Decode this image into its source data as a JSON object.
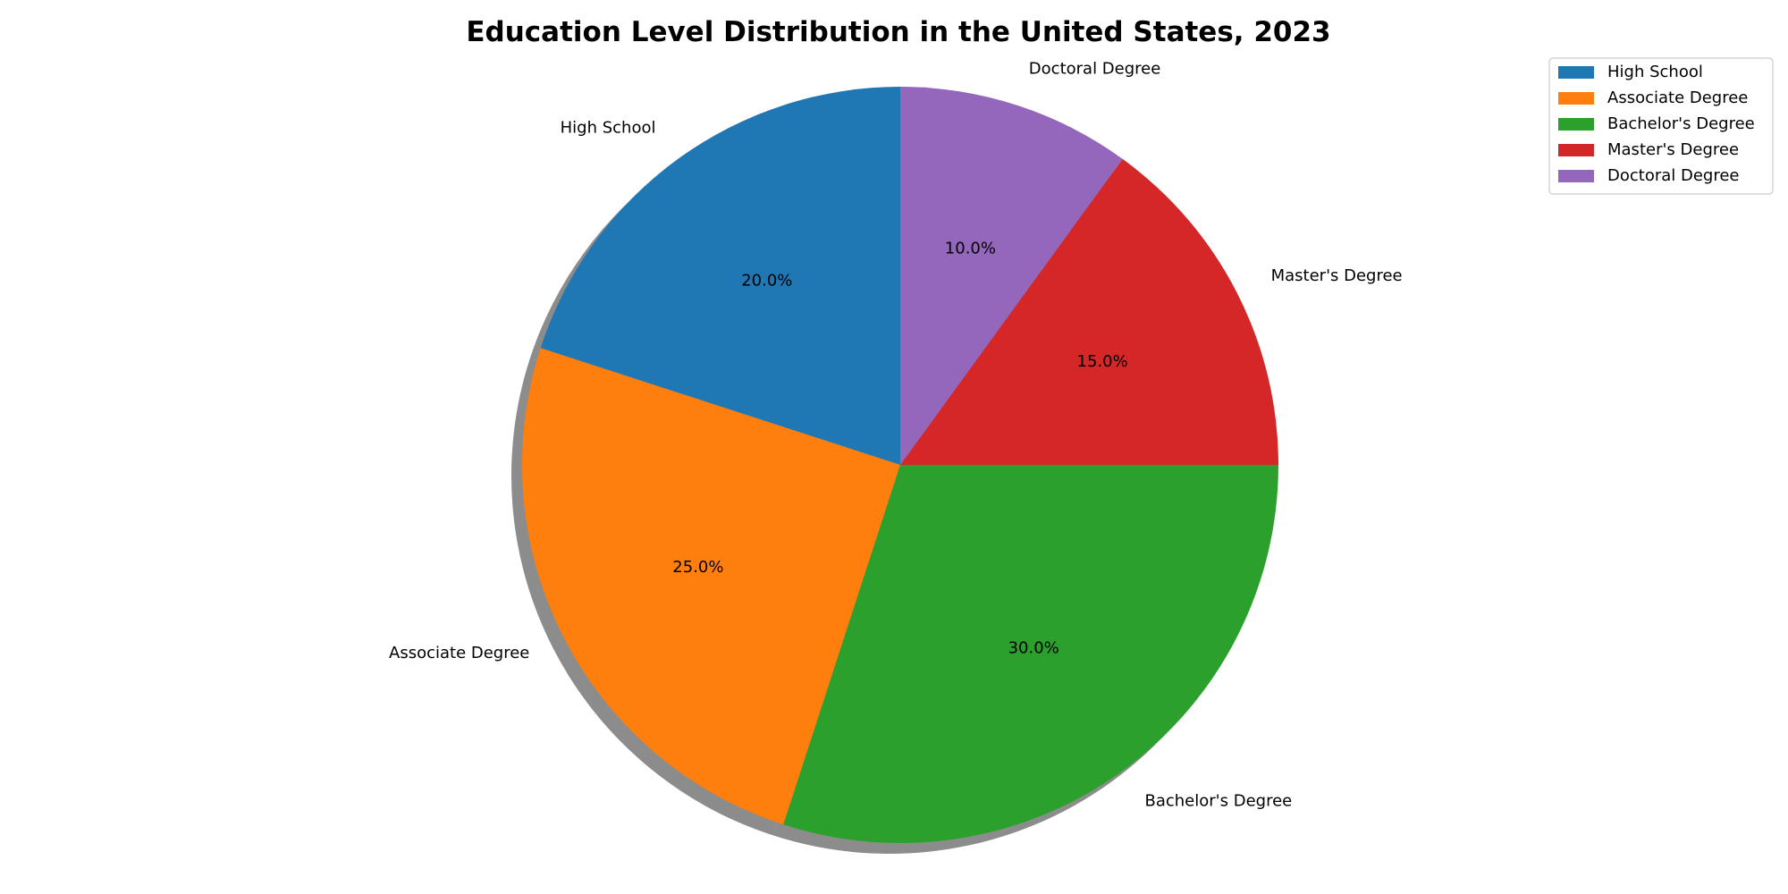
{
  "chart_data": {
    "type": "pie",
    "title": "Education Level Distribution in the United States, 2023",
    "categories": [
      "High School",
      "Associate Degree",
      "Bachelor's Degree",
      "Master's Degree",
      "Doctoral Degree"
    ],
    "values": [
      20.0,
      25.0,
      30.0,
      15.0,
      10.0
    ],
    "percent_labels": [
      "20.0%",
      "25.0%",
      "30.0%",
      "15.0%",
      "10.0%"
    ],
    "colors": [
      "#1f77b4",
      "#ff7f0e",
      "#2ca02c",
      "#d62728",
      "#9467bd"
    ],
    "start_angle_deg": 90,
    "direction": "counterclockwise",
    "shadow": true,
    "legend_position": "top-right"
  }
}
